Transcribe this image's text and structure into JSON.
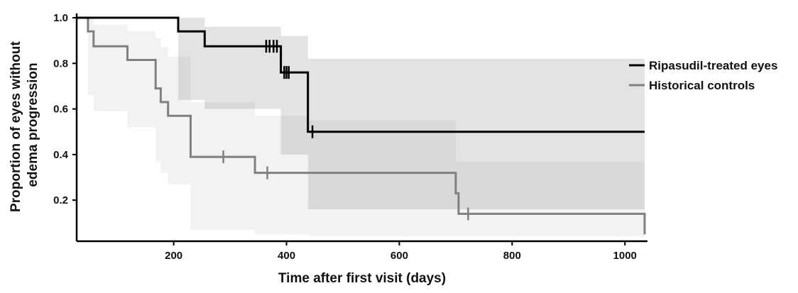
{
  "chart_data": {
    "type": "line",
    "title": "",
    "xlabel": "Time after first visit (days)",
    "ylabel": [
      "Proportion of eyes without",
      "edema progression"
    ],
    "xlim": [
      28,
      1040
    ],
    "ylim": [
      0.02,
      1.0
    ],
    "x_ticks": [
      200,
      400,
      600,
      800,
      1000
    ],
    "y_ticks": [
      0.2,
      0.4,
      0.6,
      0.8,
      1.0
    ],
    "x_tick_labels": [
      "200",
      "400",
      "600",
      "800",
      "1000"
    ],
    "y_tick_labels": [
      "0.2",
      "0.4",
      "0.6",
      "0.8",
      "1.0"
    ],
    "grid": false,
    "legend_position": "right",
    "series": [
      {
        "name": "Ripasudil-treated eyes",
        "color": "#000000",
        "step": [
          [
            28,
            1.0
          ],
          [
            208,
            1.0
          ],
          [
            208,
            0.94
          ],
          [
            255,
            0.94
          ],
          [
            255,
            0.875
          ],
          [
            390,
            0.875
          ],
          [
            390,
            0.76
          ],
          [
            438,
            0.76
          ],
          [
            438,
            0.5
          ],
          [
            1035,
            0.5
          ]
        ],
        "censor_x": [
          364,
          370,
          377,
          383,
          396,
          400,
          404,
          446
        ],
        "ci_band": [
          {
            "x0": 208,
            "x1": 255,
            "lo": 0.64,
            "hi": 1.0
          },
          {
            "x0": 255,
            "x1": 390,
            "lo": 0.6,
            "hi": 0.96
          },
          {
            "x0": 390,
            "x1": 438,
            "lo": 0.4,
            "hi": 0.92
          },
          {
            "x0": 438,
            "x1": 1035,
            "lo": 0.16,
            "hi": 0.82
          }
        ]
      },
      {
        "name": "Historical controls",
        "color": "#808080",
        "step": [
          [
            28,
            1.0
          ],
          [
            48,
            1.0
          ],
          [
            48,
            0.94
          ],
          [
            58,
            0.94
          ],
          [
            58,
            0.875
          ],
          [
            118,
            0.875
          ],
          [
            118,
            0.815
          ],
          [
            168,
            0.815
          ],
          [
            168,
            0.69
          ],
          [
            177,
            0.69
          ],
          [
            177,
            0.63
          ],
          [
            190,
            0.63
          ],
          [
            190,
            0.57
          ],
          [
            230,
            0.57
          ],
          [
            230,
            0.39
          ],
          [
            344,
            0.39
          ],
          [
            344,
            0.32
          ],
          [
            700,
            0.32
          ],
          [
            700,
            0.23
          ],
          [
            705,
            0.23
          ],
          [
            705,
            0.14
          ],
          [
            1035,
            0.14
          ],
          [
            1035,
            0.05
          ]
        ],
        "censor_x": [
          288,
          366,
          722
        ],
        "ci_band": [
          {
            "x0": 48,
            "x1": 58,
            "lo": 0.66,
            "hi": 1.0
          },
          {
            "x0": 58,
            "x1": 118,
            "lo": 0.59,
            "hi": 0.97
          },
          {
            "x0": 118,
            "x1": 168,
            "lo": 0.52,
            "hi": 0.94
          },
          {
            "x0": 168,
            "x1": 177,
            "lo": 0.37,
            "hi": 0.91
          },
          {
            "x0": 177,
            "x1": 190,
            "lo": 0.32,
            "hi": 0.87
          },
          {
            "x0": 190,
            "x1": 230,
            "lo": 0.27,
            "hi": 0.83
          },
          {
            "x0": 230,
            "x1": 344,
            "lo": 0.07,
            "hi": 0.63
          },
          {
            "x0": 344,
            "x1": 440,
            "lo": 0.05,
            "hi": 0.57
          },
          {
            "x0": 440,
            "x1": 700,
            "lo": 0.04,
            "hi": 0.55
          },
          {
            "x0": 700,
            "x1": 1035,
            "lo": 0.04,
            "hi": 0.37
          }
        ]
      }
    ]
  }
}
